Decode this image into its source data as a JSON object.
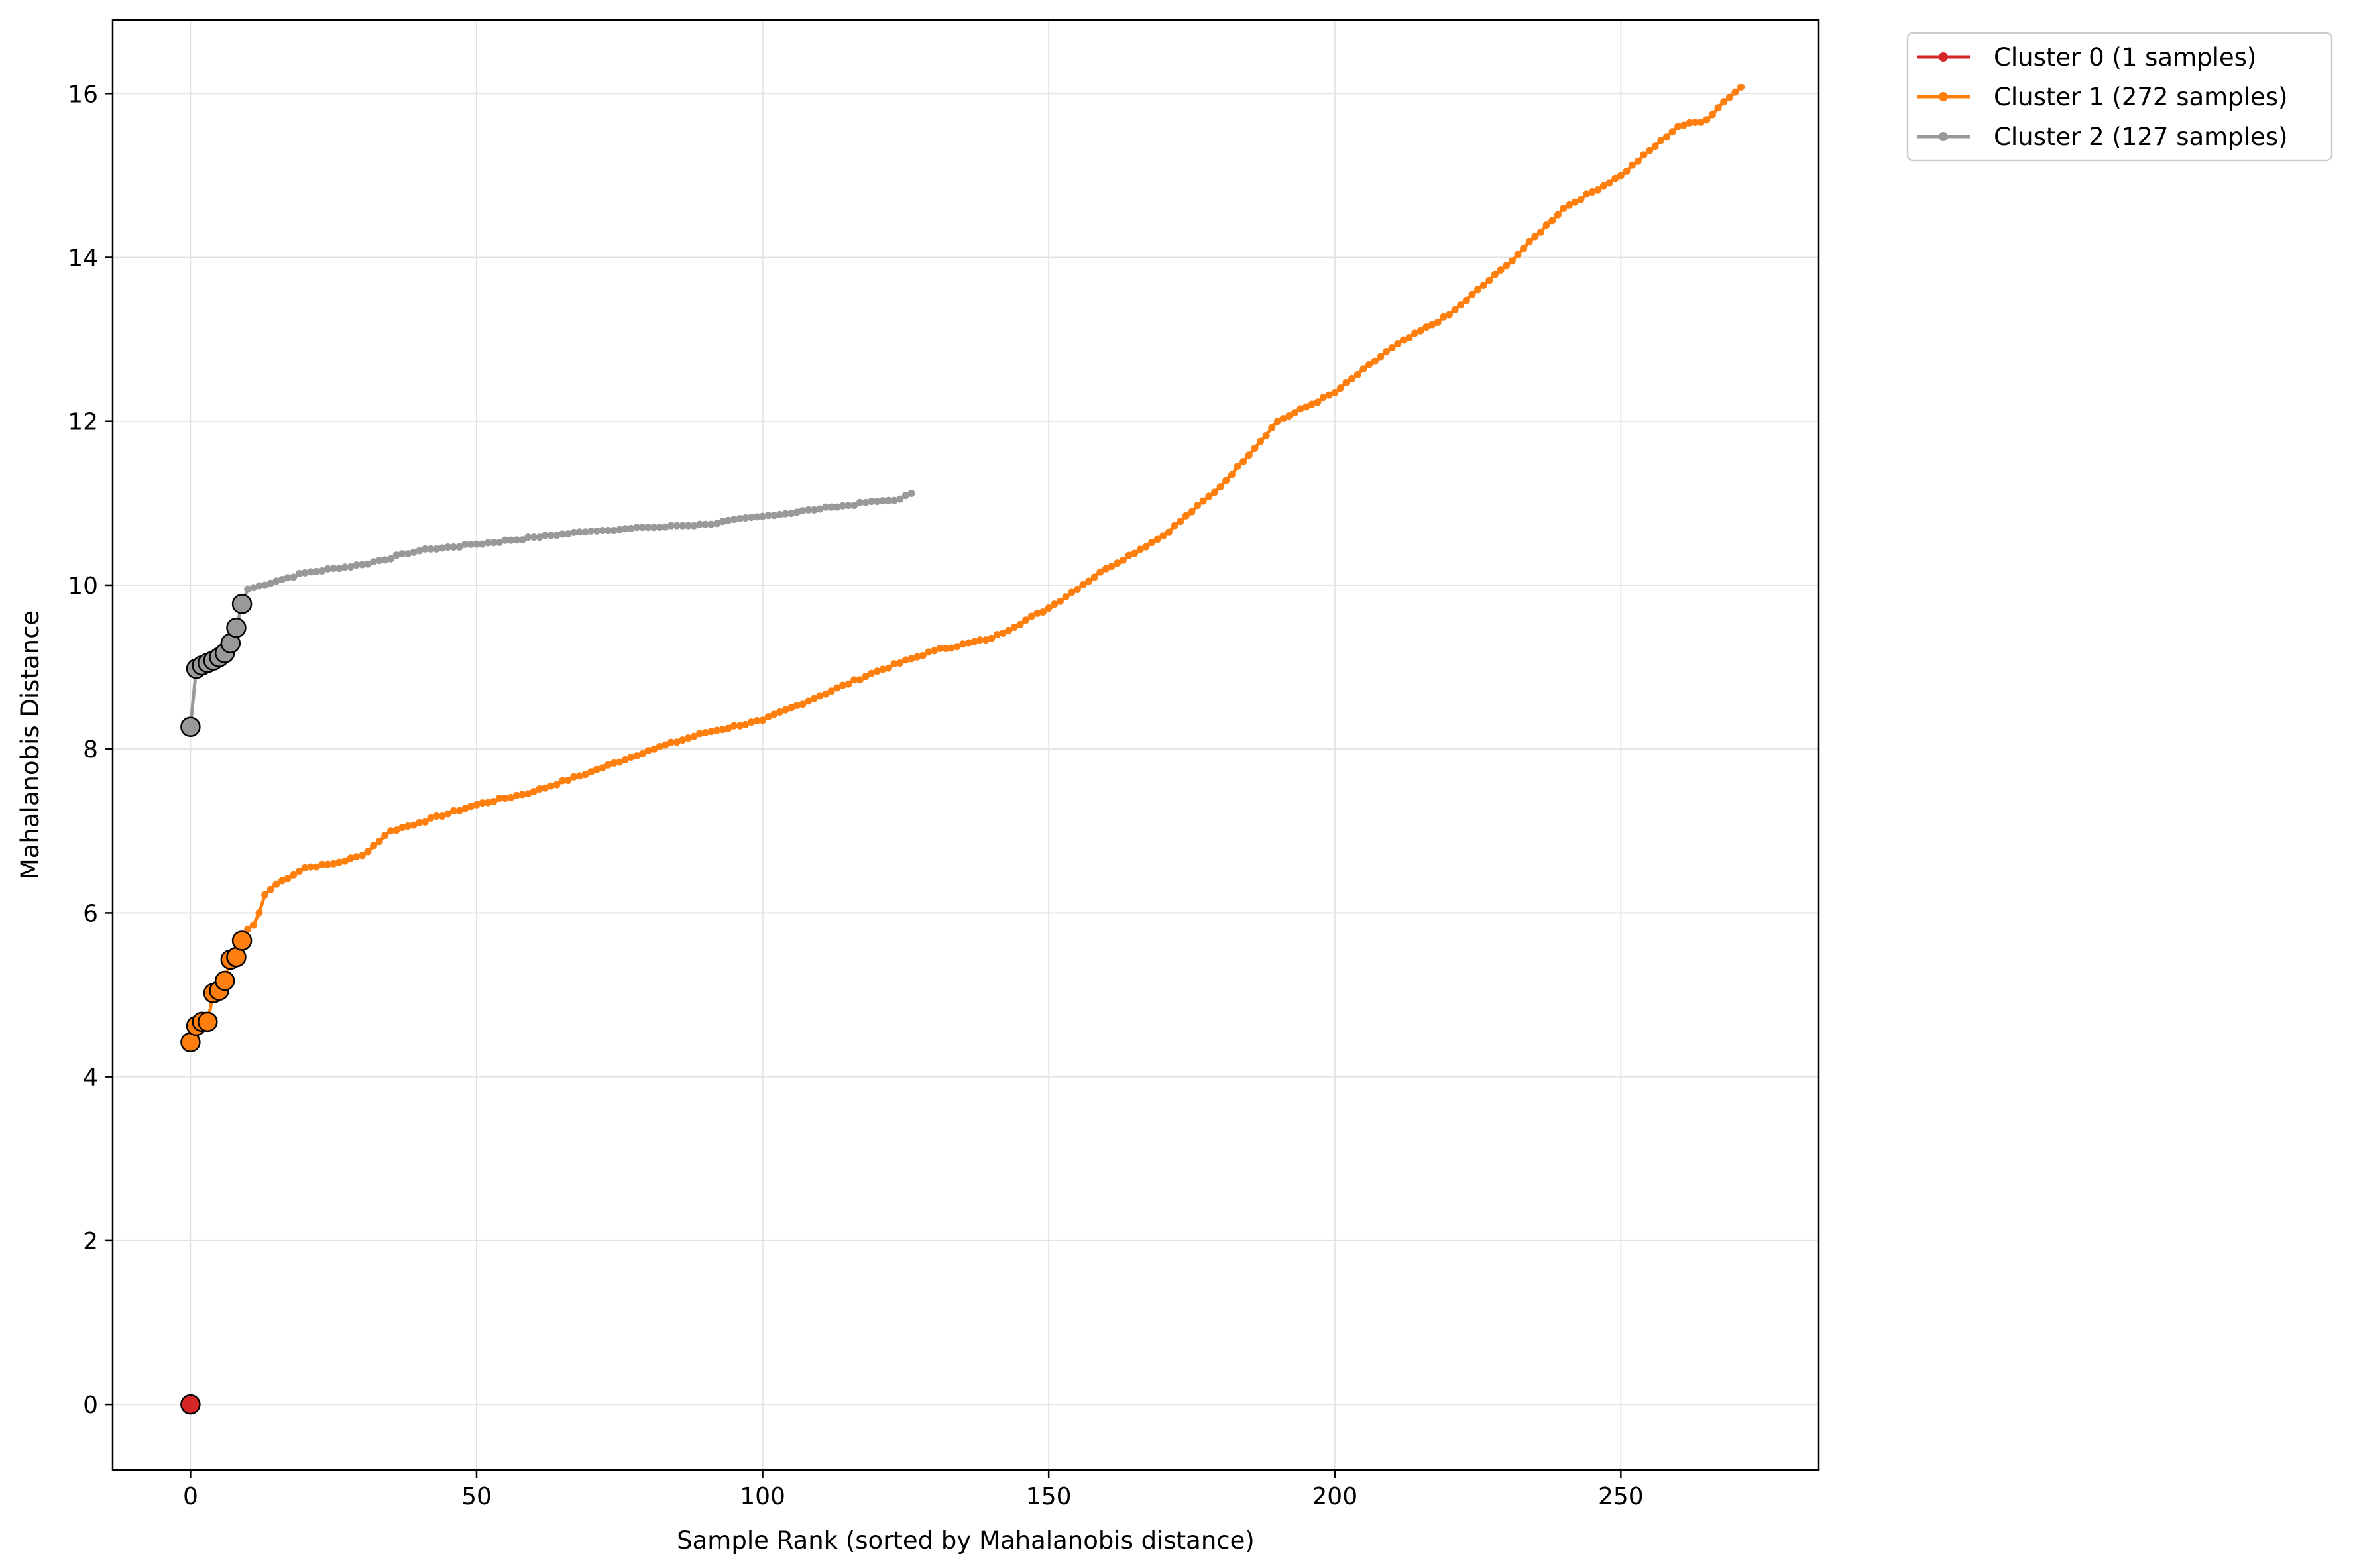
{
  "chart_data": {
    "type": "line",
    "title": "",
    "xlabel": "Sample Rank (sorted by Mahalanobis distance)",
    "ylabel": "Mahalanobis Distance",
    "xlim": [
      -13.6,
      284.6
    ],
    "ylim": [
      -0.8,
      16.9
    ],
    "xticks": [
      0,
      50,
      100,
      150,
      200,
      250
    ],
    "yticks": [
      0,
      2,
      4,
      6,
      8,
      10,
      12,
      14,
      16
    ],
    "grid": true,
    "legend_position": "outside-top-right",
    "highlight_points_per_series": 10,
    "series": [
      {
        "name": "Cluster 0 (1 samples)",
        "color": "#d62728",
        "count": 1,
        "anchors": [
          [
            0,
            0.0
          ]
        ]
      },
      {
        "name": "Cluster 1 (272 samples)",
        "color": "#ff7f0e",
        "count": 272,
        "anchors": [
          [
            0,
            4.42
          ],
          [
            1,
            4.62
          ],
          [
            2,
            4.67
          ],
          [
            3,
            4.67
          ],
          [
            4,
            5.02
          ],
          [
            5,
            5.05
          ],
          [
            6,
            5.17
          ],
          [
            7,
            5.43
          ],
          [
            8,
            5.46
          ],
          [
            9,
            5.66
          ],
          [
            10,
            5.8
          ],
          [
            11,
            5.85
          ],
          [
            12,
            6.0
          ],
          [
            13,
            6.22
          ],
          [
            15,
            6.35
          ],
          [
            20,
            6.55
          ],
          [
            25,
            6.6
          ],
          [
            30,
            6.7
          ],
          [
            35,
            7.0
          ],
          [
            40,
            7.1
          ],
          [
            50,
            7.32
          ],
          [
            60,
            7.48
          ],
          [
            70,
            7.72
          ],
          [
            80,
            7.98
          ],
          [
            90,
            8.2
          ],
          [
            100,
            8.35
          ],
          [
            110,
            8.65
          ],
          [
            120,
            8.95
          ],
          [
            130,
            9.2
          ],
          [
            140,
            9.35
          ],
          [
            150,
            9.72
          ],
          [
            160,
            10.2
          ],
          [
            170,
            10.6
          ],
          [
            180,
            11.2
          ],
          [
            190,
            12.0
          ],
          [
            200,
            12.35
          ],
          [
            210,
            12.9
          ],
          [
            220,
            13.3
          ],
          [
            230,
            13.9
          ],
          [
            240,
            14.6
          ],
          [
            250,
            15.0
          ],
          [
            260,
            15.6
          ],
          [
            265,
            15.68
          ],
          [
            268,
            15.9
          ],
          [
            271,
            16.08
          ]
        ]
      },
      {
        "name": "Cluster 2 (127 samples)",
        "color": "#999999",
        "count": 127,
        "anchors": [
          [
            0,
            8.27
          ],
          [
            1,
            8.98
          ],
          [
            2,
            9.02
          ],
          [
            3,
            9.05
          ],
          [
            4,
            9.08
          ],
          [
            5,
            9.12
          ],
          [
            6,
            9.17
          ],
          [
            7,
            9.29
          ],
          [
            8,
            9.48
          ],
          [
            9,
            9.77
          ],
          [
            10,
            9.95
          ],
          [
            15,
            10.05
          ],
          [
            20,
            10.15
          ],
          [
            30,
            10.25
          ],
          [
            40,
            10.42
          ],
          [
            50,
            10.5
          ],
          [
            60,
            10.58
          ],
          [
            70,
            10.66
          ],
          [
            80,
            10.7
          ],
          [
            90,
            10.74
          ],
          [
            100,
            10.84
          ],
          [
            110,
            10.93
          ],
          [
            120,
            11.02
          ],
          [
            124,
            11.05
          ],
          [
            126,
            11.12
          ]
        ]
      }
    ]
  }
}
